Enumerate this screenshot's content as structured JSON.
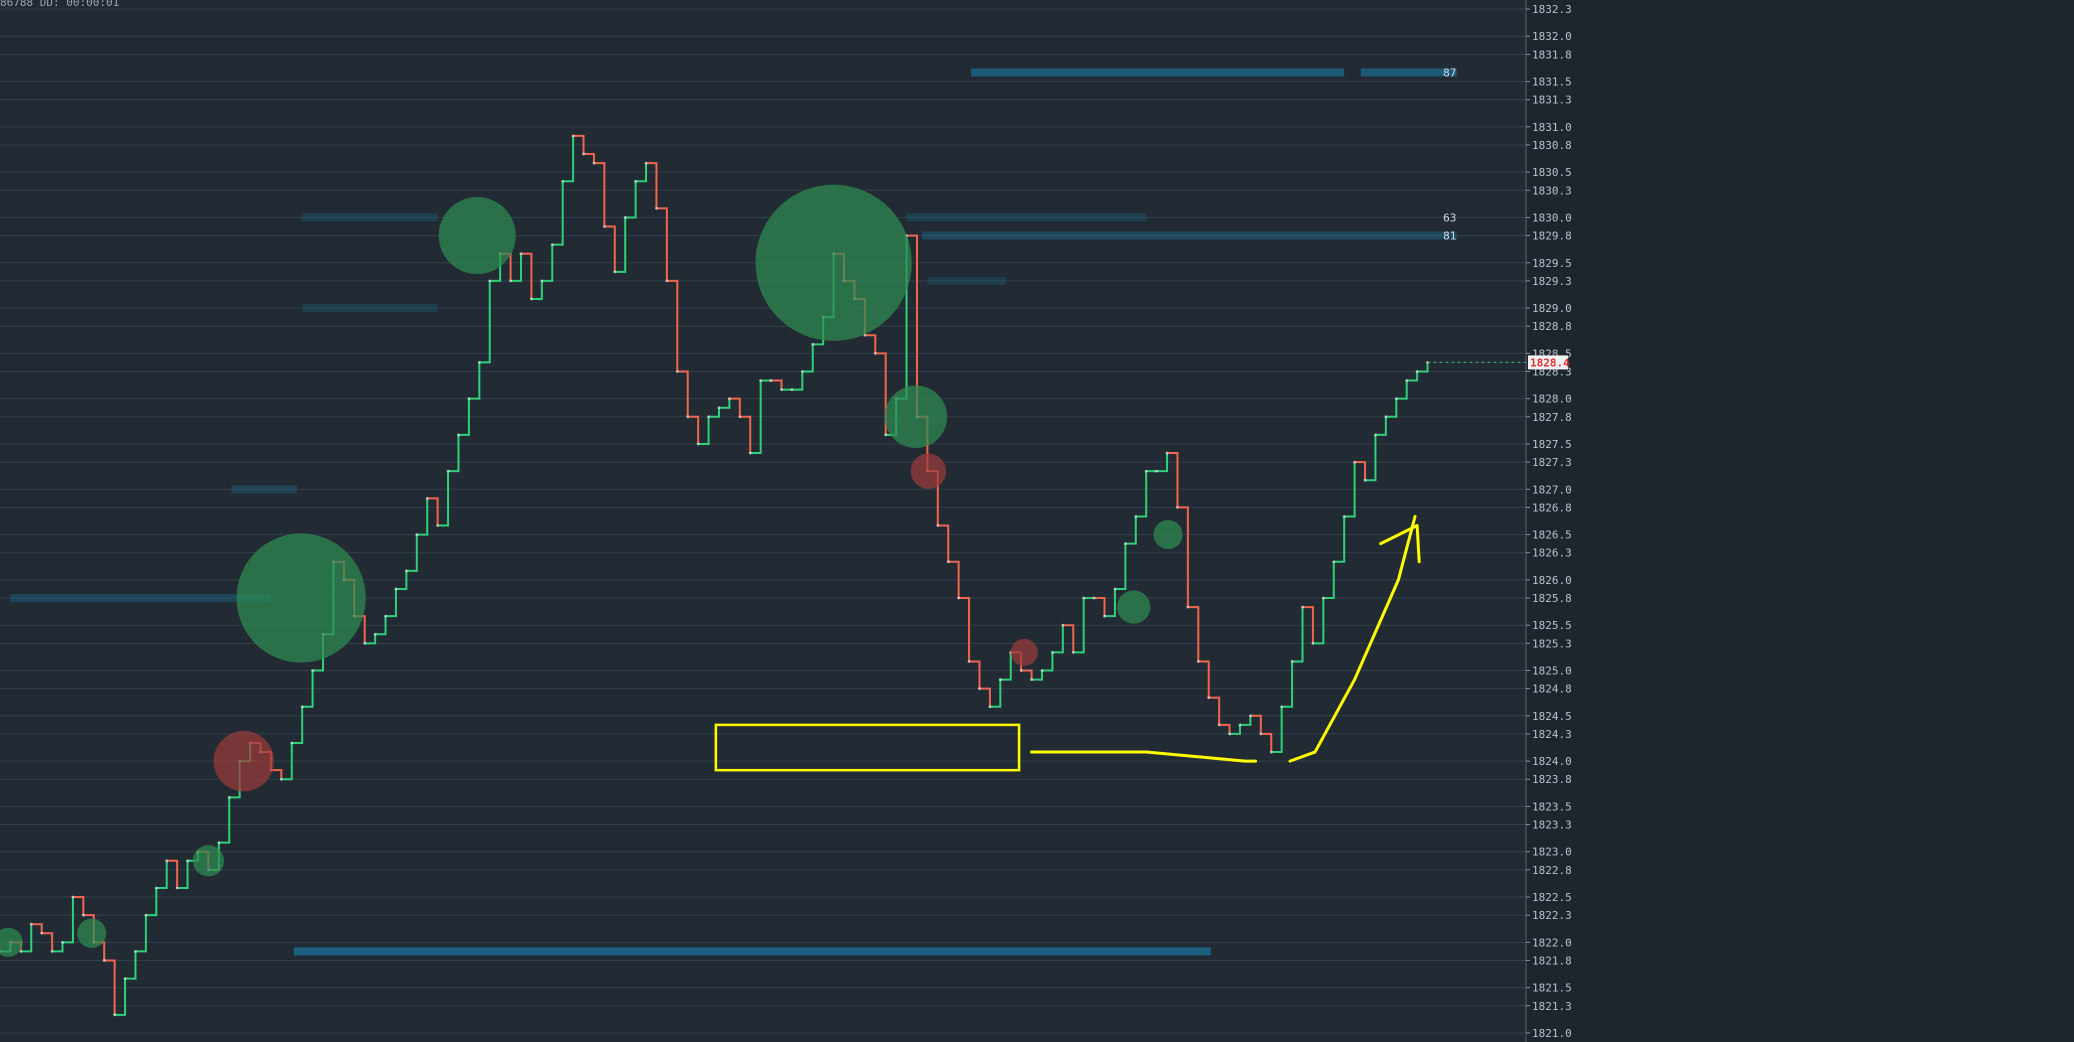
{
  "status_text": "86788 DD: 00:00:01",
  "colors": {
    "background": "#222b33",
    "grid": "#33404b",
    "up": "#2fd07a",
    "down": "#f0654f",
    "big_trade_buy": "#2e8a52",
    "big_trade_sell": "#9a3a3a",
    "liquidity": "#1b6688",
    "annotation": "#ffff00",
    "last_price": "#e03030"
  },
  "chart_data": {
    "type": "line",
    "ylim": [
      1820.9,
      1832.4
    ],
    "yticks": [
      "1821.0",
      "1821.3",
      "1821.5",
      "1821.8",
      "1822.0",
      "1822.3",
      "1822.5",
      "1822.8",
      "1823.0",
      "1823.3",
      "1823.5",
      "1823.8",
      "1824.0",
      "1824.3",
      "1824.5",
      "1824.8",
      "1825.0",
      "1825.3",
      "1825.5",
      "1825.8",
      "1826.0",
      "1826.3",
      "1826.5",
      "1826.8",
      "1827.0",
      "1827.3",
      "1827.5",
      "1827.8",
      "1828.0",
      "1828.3",
      "1828.5",
      "1828.8",
      "1829.0",
      "1829.3",
      "1829.5",
      "1829.8",
      "1830.0",
      "1830.3",
      "1830.5",
      "1830.8",
      "1831.0",
      "1831.3",
      "1831.5",
      "1831.8",
      "1832.0",
      "1832.3"
    ],
    "last_price": "1828.4",
    "series": [
      {
        "x": [
          0,
          10,
          20,
          30,
          40,
          50,
          60,
          70,
          80,
          90,
          100,
          110,
          120,
          130,
          140,
          150,
          160,
          170,
          180,
          190,
          200,
          210,
          220,
          230,
          240,
          250,
          260,
          270,
          280,
          290,
          300,
          310,
          320,
          330,
          340,
          350,
          360,
          370,
          380,
          390,
          400,
          410,
          420,
          430,
          440,
          450,
          460,
          470,
          480,
          490,
          500,
          510,
          520,
          530,
          540,
          550,
          560,
          570,
          580,
          590,
          600,
          610,
          620,
          630,
          640,
          650,
          660,
          670,
          680,
          690,
          700,
          710,
          720,
          730,
          740,
          750,
          760,
          770,
          780,
          790,
          800,
          810,
          820,
          830,
          840,
          850,
          860,
          870,
          880,
          890,
          900,
          910,
          920,
          930,
          940,
          950,
          960,
          970,
          980,
          990,
          1000,
          1010,
          1020,
          1030,
          1040,
          1050,
          1060,
          1070,
          1080,
          1090,
          1100,
          1110,
          1120,
          1130,
          1140,
          1150,
          1160,
          1170,
          1180,
          1190,
          1200,
          1210,
          1220,
          1230,
          1240,
          1250,
          1260,
          1270,
          1280,
          1290,
          1300,
          1310,
          1320,
          1330,
          1340,
          1350,
          1360,
          1370
        ],
        "values": [
          1821.9,
          1822.0,
          1821.9,
          1822.2,
          1822.1,
          1821.9,
          1822.0,
          1822.5,
          1822.3,
          1822.0,
          1821.8,
          1821.2,
          1821.6,
          1821.9,
          1822.3,
          1822.6,
          1822.9,
          1822.6,
          1822.9,
          1823.0,
          1822.8,
          1823.1,
          1823.6,
          1824.0,
          1824.2,
          1824.1,
          1823.9,
          1823.8,
          1824.2,
          1824.6,
          1825.0,
          1825.4,
          1826.2,
          1826.0,
          1825.6,
          1825.3,
          1825.4,
          1825.6,
          1825.9,
          1826.1,
          1826.5,
          1826.9,
          1826.6,
          1827.2,
          1827.6,
          1828.0,
          1828.4,
          1829.3,
          1829.6,
          1829.3,
          1829.6,
          1829.1,
          1829.3,
          1829.7,
          1830.4,
          1830.9,
          1830.7,
          1830.6,
          1829.9,
          1829.4,
          1830.0,
          1830.4,
          1830.6,
          1830.1,
          1829.3,
          1828.3,
          1827.8,
          1827.5,
          1827.8,
          1827.9,
          1828.0,
          1827.8,
          1827.4,
          1828.2,
          1828.2,
          1828.1,
          1828.1,
          1828.3,
          1828.6,
          1828.9,
          1829.6,
          1829.3,
          1829.1,
          1828.7,
          1828.5,
          1827.6,
          1828.0,
          1829.8,
          1827.8,
          1827.2,
          1826.6,
          1826.2,
          1825.8,
          1825.1,
          1824.8,
          1824.6,
          1824.9,
          1825.2,
          1825.0,
          1824.9,
          1825.0,
          1825.2,
          1825.5,
          1825.2,
          1825.8,
          1825.8,
          1825.6,
          1825.9,
          1826.4,
          1826.7,
          1827.2,
          1827.2,
          1827.4,
          1826.8,
          1825.7,
          1825.1,
          1824.7,
          1824.4,
          1824.3,
          1824.4,
          1824.5,
          1824.3,
          1824.1,
          1824.6,
          1825.1,
          1825.7,
          1825.3,
          1825.8,
          1826.2,
          1826.7,
          1827.3,
          1827.1,
          1827.6,
          1827.8,
          1828.0,
          1828.2,
          1828.3,
          1828.4
        ]
      }
    ],
    "bubbles": [
      {
        "x": 8,
        "y": 1822.0,
        "size": 14,
        "side": "buy"
      },
      {
        "x": 88,
        "y": 1822.1,
        "size": 14,
        "side": "buy"
      },
      {
        "x": 200,
        "y": 1822.9,
        "size": 15,
        "side": "buy"
      },
      {
        "x": 234,
        "y": 1824.0,
        "size": 29,
        "side": "sell"
      },
      {
        "x": 289,
        "y": 1825.8,
        "size": 62,
        "side": "buy"
      },
      {
        "x": 458,
        "y": 1829.8,
        "size": 37,
        "side": "buy"
      },
      {
        "x": 800,
        "y": 1829.5,
        "size": 75,
        "side": "buy"
      },
      {
        "x": 879,
        "y": 1827.8,
        "size": 30,
        "side": "buy"
      },
      {
        "x": 891,
        "y": 1827.2,
        "size": 17,
        "side": "sell"
      },
      {
        "x": 983,
        "y": 1825.2,
        "size": 13,
        "side": "sell"
      },
      {
        "x": 1088,
        "y": 1825.7,
        "size": 16,
        "side": "buy"
      },
      {
        "x": 1121,
        "y": 1826.5,
        "size": 14,
        "side": "buy"
      }
    ],
    "liquidity": [
      {
        "x1": 932,
        "x2": 1290,
        "y": 1831.6,
        "alpha": 0.8
      },
      {
        "x1": 1306,
        "x2": 1398,
        "y": 1831.6,
        "alpha": 0.8
      },
      {
        "x1": 870,
        "x2": 1100,
        "y": 1830.0,
        "alpha": 0.35
      },
      {
        "x1": 885,
        "x2": 1398,
        "y": 1829.8,
        "alpha": 0.5
      },
      {
        "x1": 10,
        "x2": 260,
        "y": 1825.8,
        "alpha": 0.45
      },
      {
        "x1": 282,
        "x2": 1162,
        "y": 1821.9,
        "alpha": 0.9
      },
      {
        "x1": 290,
        "x2": 420,
        "y": 1830.0,
        "alpha": 0.35
      },
      {
        "x1": 290,
        "x2": 420,
        "y": 1829.0,
        "alpha": 0.3
      },
      {
        "x1": 222,
        "x2": 285,
        "y": 1827.0,
        "alpha": 0.4
      },
      {
        "x1": 890,
        "x2": 965,
        "y": 1829.3,
        "alpha": 0.3
      }
    ],
    "volume_labels": [
      {
        "y": 1831.6,
        "text": "87"
      },
      {
        "y": 1830.0,
        "text": "63"
      },
      {
        "y": 1829.8,
        "text": "81"
      }
    ],
    "annotations": [
      {
        "type": "rect",
        "x1": 687,
        "x2": 978,
        "y1": 1824.4,
        "y2": 1823.9
      },
      {
        "type": "arrow",
        "points": [
          [
            990,
            1824.1
          ],
          [
            1100,
            1824.1
          ],
          [
            1195,
            1824.0
          ],
          [
            1205,
            1824.0
          ]
        ]
      },
      {
        "type": "arrow",
        "points": [
          [
            1238,
            1824.0
          ],
          [
            1262,
            1824.1
          ],
          [
            1300,
            1824.9
          ],
          [
            1342,
            1826.0
          ],
          [
            1358,
            1826.7
          ]
        ]
      },
      {
        "type": "arrow",
        "points": [
          [
            1325,
            1826.4
          ],
          [
            1360,
            1826.6
          ],
          [
            1362,
            1826.2
          ]
        ]
      }
    ]
  }
}
